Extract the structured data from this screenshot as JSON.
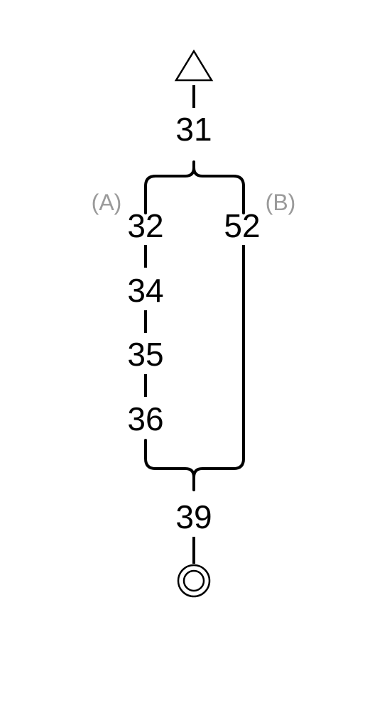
{
  "diagram": {
    "start_symbol": "triangle",
    "end_symbol": "double-circle",
    "nodes": {
      "n31": "31",
      "n32": "32",
      "n34": "34",
      "n35": "35",
      "n36": "36",
      "n52": "52",
      "n39": "39"
    },
    "branches": {
      "a_label": "(A)",
      "b_label": "(B)",
      "a_path": [
        "32",
        "34",
        "35",
        "36"
      ],
      "b_path": [
        "52"
      ]
    },
    "colors": {
      "line": "#000000",
      "node_text": "#000000",
      "branch_label": "#9a9a9a"
    }
  }
}
